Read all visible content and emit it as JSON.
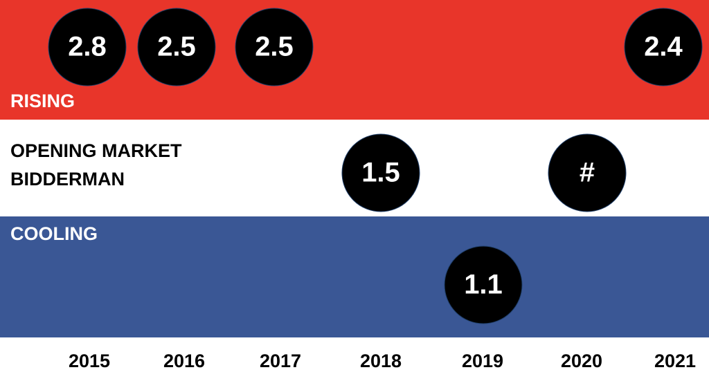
{
  "years": [
    "2015",
    "2016",
    "2017",
    "2018",
    "2019",
    "2020",
    "2021"
  ],
  "bands": [
    {
      "label": [
        "RISING"
      ],
      "color": "#e8352a",
      "text_color": "#ffffff",
      "markers": [
        {
          "year": "2015",
          "label": "2.8"
        },
        {
          "year": "2016",
          "label": "2.5"
        },
        {
          "year": "2017",
          "label": "2.5"
        },
        {
          "year": "2021",
          "label": "2.4"
        }
      ]
    },
    {
      "label": [
        "OPENING MARKET",
        "BIDDERMAN"
      ],
      "color": "#ffffff",
      "text_color": "#000000",
      "markers": [
        {
          "year": "2018",
          "label": "1.5"
        },
        {
          "year": "2020",
          "label": "#"
        }
      ]
    },
    {
      "label": [
        "COOLING"
      ],
      "color": "#3a5795",
      "text_color": "#ffffff",
      "markers": [
        {
          "year": "2019",
          "label": "1.1"
        }
      ]
    }
  ]
}
